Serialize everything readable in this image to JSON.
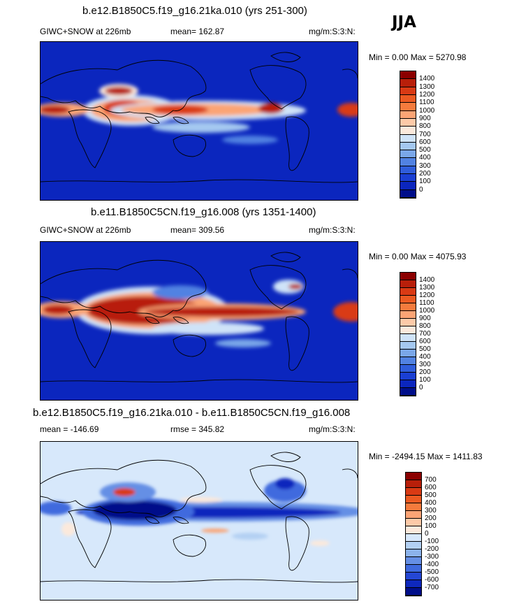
{
  "season": "JJA",
  "panels": [
    {
      "title": "b.e12.B1850C5.f19_g16.21ka.010 (yrs 251-300)",
      "left_label": "GIWC+SNOW at 226mb",
      "mid_label": "mean= 162.87",
      "units": "mg/m:S:3:N:",
      "minmax": "Min =   0.00 Max = 5270.98",
      "kind": "field"
    },
    {
      "title": "b.e11.B1850C5CN.f19_g16.008 (yrs 1351-1400)",
      "left_label": "GIWC+SNOW at 226mb",
      "mid_label": "mean= 309.56",
      "units": "mg/m:S:3:N:",
      "minmax": "Min =   0.00 Max = 4075.93",
      "kind": "field"
    },
    {
      "title": "b.e12.B1850C5.f19_g16.21ka.010 - b.e11.B1850C5CN.f19_g16.008",
      "left_label": "mean = -146.69",
      "mid_label": "rmse = 345.82",
      "units": "mg/m:S:3:N:",
      "minmax": "Min = -2494.15 Max = 1411.83",
      "kind": "diff"
    }
  ],
  "chart_data": [
    {
      "type": "heatmap",
      "title": "b.e12.B1850C5.f19_g16.21ka.010 (yrs 251-300)",
      "variable": "GIWC+SNOW at 226mb",
      "units": "mg/m:S:3:N:",
      "mean": 162.87,
      "min": 0.0,
      "max": 5270.98,
      "levels": [
        0,
        100,
        200,
        300,
        400,
        500,
        600,
        700,
        800,
        900,
        1000,
        1100,
        1200,
        1300,
        1400
      ]
    },
    {
      "type": "heatmap",
      "title": "b.e11.B1850C5CN.f19_g16.008 (yrs 1351-1400)",
      "variable": "GIWC+SNOW at 226mb",
      "units": "mg/m:S:3:N:",
      "mean": 309.56,
      "min": 0.0,
      "max": 4075.93,
      "levels": [
        0,
        100,
        200,
        300,
        400,
        500,
        600,
        700,
        800,
        900,
        1000,
        1100,
        1200,
        1300,
        1400
      ]
    },
    {
      "type": "heatmap",
      "title": "b.e12.B1850C5.f19_g16.21ka.010 - b.e11.B1850C5CN.f19_g16.008",
      "units": "mg/m:S:3:N:",
      "mean": -146.69,
      "rmse": 345.82,
      "min": -2494.15,
      "max": 1411.83,
      "levels": [
        -700,
        -600,
        -500,
        -400,
        -300,
        -200,
        -100,
        0,
        100,
        200,
        300,
        400,
        500,
        600,
        700
      ]
    }
  ],
  "colorbars": {
    "field": {
      "labels": [
        "1400",
        "1300",
        "1200",
        "1100",
        "1000",
        "900",
        "800",
        "700",
        "600",
        "500",
        "400",
        "300",
        "200",
        "100",
        "0"
      ],
      "colors": [
        "#8b0000",
        "#b81f0a",
        "#d93a14",
        "#ec5a22",
        "#f57b3d",
        "#fba475",
        "#fdcaa8",
        "#fbe9dc",
        "#cfe3f8",
        "#a4c8f0",
        "#7aa7e9",
        "#5182e2",
        "#2f5ddb",
        "#1a3fd3",
        "#0b26be",
        "#000e8a"
      ]
    },
    "diff": {
      "labels": [
        "700",
        "600",
        "500",
        "400",
        "300",
        "200",
        "100",
        "0",
        "-100",
        "-200",
        "-300",
        "-400",
        "-500",
        "-600",
        "-700"
      ],
      "colors": [
        "#8b0000",
        "#b81f0a",
        "#d93a14",
        "#ec5a22",
        "#f57b3d",
        "#fba475",
        "#fdcaa8",
        "#fbe9dc",
        "#d7e8fb",
        "#b3d0f3",
        "#8cb3ec",
        "#658fe5",
        "#3f6ade",
        "#2547d4",
        "#0e28bd",
        "#000e8a"
      ]
    }
  }
}
